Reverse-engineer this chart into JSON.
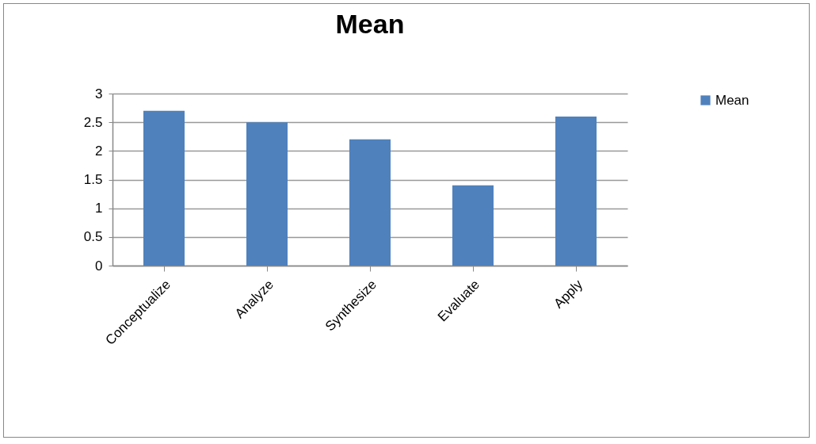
{
  "chart_data": {
    "type": "bar",
    "title": "Mean",
    "categories": [
      "Conceptualize",
      "Analyze",
      "Synthesize",
      "Evaluate",
      "Apply"
    ],
    "series": [
      {
        "name": "Mean",
        "color": "#4f81bd",
        "values": [
          2.7,
          2.5,
          2.2,
          1.4,
          2.6
        ]
      }
    ],
    "ylim": [
      0,
      3
    ],
    "yticks": [
      0,
      0.5,
      1,
      1.5,
      2,
      2.5,
      3
    ],
    "grid": "y",
    "legend": "right"
  }
}
